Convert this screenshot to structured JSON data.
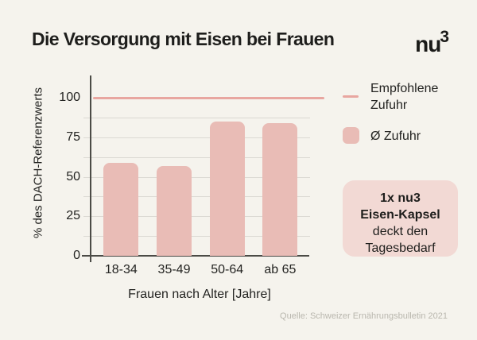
{
  "header": {
    "title": "Die Versorgung mit Eisen bei Frauen",
    "logo_text": "nu",
    "logo_sup": "3"
  },
  "chart_data": {
    "type": "bar",
    "title": "Die Versorgung mit Eisen bei Frauen",
    "categories": [
      "18-34",
      "35-49",
      "50-64",
      "ab 65"
    ],
    "series": [
      {
        "name": "Ø Zufuhr",
        "values": [
          59,
          57,
          85,
          84
        ]
      }
    ],
    "xlabel": "Frauen nach Alter [Jahre]",
    "ylabel": "% des DACH-Referenzwerts",
    "yticks": [
      0,
      25,
      50,
      75,
      100
    ],
    "ylim": [
      0,
      114
    ],
    "grid": true,
    "grid_interval": 12.5,
    "legend_position": "right",
    "reference_line": {
      "value": 100,
      "label": "Empfohlene Zufuhr"
    }
  },
  "legend": {
    "items": [
      {
        "swatch": "line",
        "label": "Empfohlene Zufuhr"
      },
      {
        "swatch": "square",
        "label": "Ø Zufuhr"
      }
    ]
  },
  "callout": {
    "lines": [
      {
        "text": "1x nu3",
        "bold": true
      },
      {
        "text": "Eisen-Kapsel",
        "bold": true
      },
      {
        "text": "deckt den",
        "bold": false
      },
      {
        "text": "Tagesbedarf",
        "bold": false
      }
    ]
  },
  "source": "Quelle: Schweizer Ernährungsbulletin 2021",
  "colors": {
    "background": "#f5f3ed",
    "bar": "#e9bcb6",
    "reference_line": "#e8a6a0",
    "callout_bg": "#f2d9d4",
    "ink": "#1e1e1c",
    "gridline": "#dbd9d3",
    "axis": "#4b4b46",
    "muted": "#b9b7ae"
  }
}
